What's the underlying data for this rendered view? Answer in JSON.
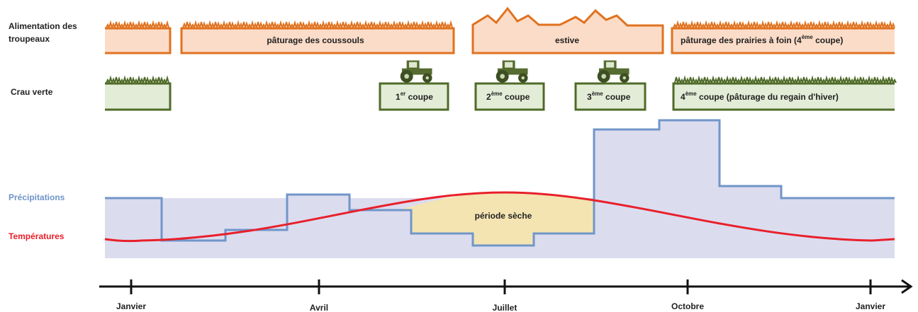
{
  "feeding": {
    "label": [
      "Alimentation des",
      "troupeaux"
    ],
    "boxes": [
      "pâturage des coussouls",
      "estive",
      {
        "text": "pâturage des prairies à foin (4",
        "sup": "ème",
        "after": " coupe)"
      }
    ]
  },
  "crau_verte": {
    "label": "Crau verte",
    "cuts": [
      {
        "num": "1",
        "sup": "er",
        "text": " coupe"
      },
      {
        "num": "2",
        "sup": "ème",
        "text": " coupe"
      },
      {
        "num": "3",
        "sup": "ème",
        "text": " coupe"
      }
    ],
    "last": {
      "num": "4",
      "sup": "ème",
      "text": " coupe (pâturage du regain d'hiver)"
    }
  },
  "legend": {
    "precipitation": "Précipitations",
    "temperature": "Températures"
  },
  "dry_period": "période sèche",
  "months": [
    "Janvier",
    "Avril",
    "Juillet",
    "Octobre",
    "Janvier"
  ]
}
